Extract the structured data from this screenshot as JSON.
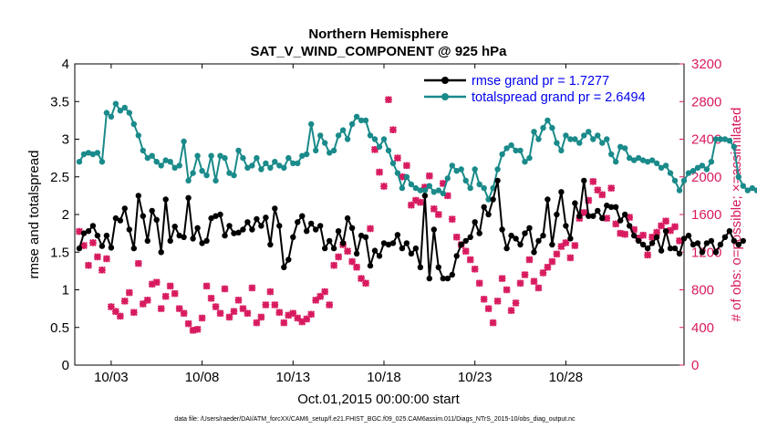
{
  "chart_data": {
    "type": "line",
    "title": "Northern Hemisphere",
    "subtitle": "SAT_V_WIND_COMPONENT @ 925 hPa",
    "xlabel": "Oct.01,2015 00:00:00 start",
    "ylabel_left": "rmse and totalspread",
    "ylabel_right": "# of obs: o=possible; ×=assimilated",
    "footnote": "data file: /Users/raeder/DAI/ATM_forcXX/CAM6_setup/f.e21.FHIST_BGC.f09_025.CAM6assim.011/Diags_NTrS_2015-10/obs_diag_output.nc",
    "xlim": [
      1,
      34.5
    ],
    "ylim_left": [
      0,
      4
    ],
    "ylim_right": [
      0,
      3200
    ],
    "x_ticks": [
      3,
      8,
      13,
      18,
      23,
      28
    ],
    "x_tick_labels": [
      "10/03",
      "10/08",
      "10/13",
      "10/18",
      "10/23",
      "10/28"
    ],
    "y_ticks_left": [
      0,
      0.5,
      1,
      1.5,
      2,
      2.5,
      3,
      3.5,
      4
    ],
    "y_tick_labels_left": [
      "0",
      "0.5",
      "1",
      "1.5",
      "2",
      "2.5",
      "3",
      "3.5",
      "4"
    ],
    "y_ticks_right": [
      0,
      400,
      800,
      1200,
      1600,
      2000,
      2400,
      2800,
      3200
    ],
    "y_tick_labels_right": [
      "0",
      "400",
      "800",
      "1200",
      "1600",
      "2000",
      "2400",
      "2800",
      "3200"
    ],
    "x_start": 1.25,
    "x_step": 0.25,
    "series": [
      {
        "name": "rmse",
        "legend_label": "rmse grand pr = 1.7277",
        "color": "#000000",
        "axis": "left",
        "values": [
          1.55,
          1.75,
          1.78,
          1.85,
          1.72,
          1.58,
          1.72,
          1.56,
          1.95,
          1.92,
          2.08,
          1.8,
          1.55,
          2.25,
          1.98,
          1.65,
          2.05,
          1.93,
          1.5,
          2.2,
          1.65,
          1.84,
          1.72,
          1.7,
          2.22,
          1.68,
          1.82,
          1.62,
          1.65,
          1.95,
          1.98,
          2.0,
          1.72,
          1.85,
          1.75,
          1.76,
          1.8,
          1.9,
          1.8,
          1.94,
          1.85,
          1.96,
          1.6,
          2.08,
          1.85,
          1.3,
          1.4,
          1.7,
          1.9,
          1.98,
          1.78,
          1.88,
          1.8,
          1.85,
          1.55,
          1.65,
          1.55,
          1.78,
          1.62,
          1.95,
          1.82,
          1.48,
          1.72,
          1.7,
          1.32,
          1.52,
          1.45,
          1.62,
          1.6,
          1.62,
          1.73,
          1.55,
          1.62,
          1.48,
          1.55,
          1.3,
          2.25,
          1.15,
          1.8,
          1.3,
          1.15,
          1.15,
          1.2,
          1.45,
          1.6,
          1.65,
          1.7,
          1.9,
          1.75,
          2.1,
          2.0,
          2.2,
          2.45,
          1.8,
          1.55,
          1.72,
          1.68,
          1.6,
          1.75,
          1.82,
          1.5,
          1.65,
          1.72,
          2.2,
          1.6,
          2.0,
          2.3,
          1.85,
          1.68,
          2.15,
          1.98,
          2.45,
          1.98,
          1.98,
          2.05,
          1.95,
          2.12,
          2.1,
          2.1,
          1.92,
          2.0,
          1.85,
          1.72,
          1.65,
          1.6,
          1.55,
          1.62,
          1.7,
          1.52,
          1.78,
          1.55,
          1.55,
          1.48,
          1.68,
          1.72,
          1.6,
          1.62,
          1.5,
          1.62,
          1.65,
          1.5,
          1.6,
          1.7,
          1.78,
          1.65,
          1.6,
          1.65
        ]
      },
      {
        "name": "totalspread",
        "legend_label": "totalspread grand pr = 2.6494",
        "color": "#1a8a8a",
        "axis": "left",
        "values": [
          2.7,
          2.8,
          2.82,
          2.8,
          2.82,
          2.7,
          3.35,
          3.3,
          3.47,
          3.38,
          3.42,
          3.35,
          3.2,
          3.05,
          2.85,
          2.75,
          2.78,
          2.7,
          2.65,
          2.72,
          2.7,
          2.62,
          2.65,
          2.97,
          2.45,
          2.55,
          2.78,
          2.58,
          2.52,
          2.78,
          2.45,
          2.78,
          2.75,
          2.55,
          2.52,
          2.85,
          2.75,
          2.62,
          2.65,
          2.75,
          2.6,
          2.68,
          2.62,
          2.7,
          2.65,
          2.62,
          2.75,
          2.68,
          2.68,
          2.78,
          2.8,
          3.2,
          2.85,
          3.05,
          2.95,
          2.82,
          2.85,
          3.05,
          3.12,
          3.0,
          3.2,
          3.3,
          3.25,
          3.25,
          3.05,
          3.0,
          2.9,
          3.0,
          2.85,
          2.68,
          2.55,
          2.35,
          2.5,
          2.4,
          2.35,
          2.32,
          2.32,
          2.38,
          2.3,
          2.32,
          2.28,
          2.48,
          2.65,
          2.58,
          2.6,
          2.45,
          2.35,
          2.6,
          2.4,
          2.35,
          2.2,
          2.35,
          2.6,
          2.8,
          2.88,
          2.92,
          2.85,
          2.85,
          2.7,
          2.75,
          3.1,
          3.0,
          3.15,
          3.25,
          3.15,
          2.95,
          2.85,
          3.05,
          3.0,
          3.0,
          2.95,
          3.05,
          3.1,
          3.0,
          3.05,
          2.95,
          3.0,
          2.8,
          2.7,
          2.9,
          2.88,
          2.75,
          2.72,
          2.75,
          2.72,
          2.7,
          2.72,
          2.68,
          2.62,
          2.65,
          2.55,
          2.45,
          2.32,
          2.45,
          2.55,
          2.58,
          2.62,
          2.65,
          2.6,
          2.7,
          3.0,
          3.0,
          3.0,
          2.98,
          2.9,
          2.5,
          2.38,
          2.32,
          2.35,
          2.32
        ]
      }
    ],
    "obs_scatter": {
      "name": "assimilated",
      "color": "#d81b60",
      "marker": "×",
      "axis": "right",
      "points": [
        [
          1.25,
          1420
        ],
        [
          1.5,
          1270
        ],
        [
          1.75,
          1060
        ],
        [
          2,
          1300
        ],
        [
          2.25,
          1150
        ],
        [
          2.5,
          1010
        ],
        [
          2.75,
          1130
        ],
        [
          3,
          620
        ],
        [
          3.25,
          570
        ],
        [
          3.5,
          520
        ],
        [
          3.75,
          680
        ],
        [
          4,
          770
        ],
        [
          4.25,
          560
        ],
        [
          4.5,
          1080
        ],
        [
          4.75,
          650
        ],
        [
          5,
          690
        ],
        [
          5.25,
          860
        ],
        [
          5.5,
          880
        ],
        [
          5.75,
          600
        ],
        [
          6,
          730
        ],
        [
          6.25,
          840
        ],
        [
          6.5,
          760
        ],
        [
          6.75,
          600
        ],
        [
          7,
          550
        ],
        [
          7.25,
          440
        ],
        [
          7.5,
          370
        ],
        [
          7.75,
          380
        ],
        [
          8,
          500
        ],
        [
          8.25,
          840
        ],
        [
          8.5,
          710
        ],
        [
          8.75,
          620
        ],
        [
          9,
          550
        ],
        [
          9.25,
          810
        ],
        [
          9.5,
          510
        ],
        [
          9.75,
          570
        ],
        [
          10,
          690
        ],
        [
          10.25,
          600
        ],
        [
          10.5,
          550
        ],
        [
          10.75,
          820
        ],
        [
          11,
          450
        ],
        [
          11.25,
          510
        ],
        [
          11.5,
          640
        ],
        [
          11.75,
          780
        ],
        [
          12,
          640
        ],
        [
          12.25,
          560
        ],
        [
          12.5,
          450
        ],
        [
          12.75,
          530
        ],
        [
          13,
          550
        ],
        [
          13.25,
          500
        ],
        [
          13.5,
          460
        ],
        [
          13.75,
          490
        ],
        [
          14,
          540
        ],
        [
          14.25,
          690
        ],
        [
          14.5,
          730
        ],
        [
          14.75,
          780
        ],
        [
          15,
          640
        ],
        [
          15.25,
          1060
        ],
        [
          15.5,
          1150
        ],
        [
          15.75,
          1280
        ],
        [
          16,
          1210
        ],
        [
          16.25,
          1100
        ],
        [
          16.5,
          1040
        ],
        [
          16.75,
          920
        ],
        [
          17,
          870
        ],
        [
          17.25,
          1450
        ],
        [
          17.5,
          2290
        ],
        [
          17.75,
          2050
        ],
        [
          18,
          1900
        ],
        [
          18.25,
          2820
        ],
        [
          18.5,
          2500
        ],
        [
          18.75,
          2200
        ],
        [
          19,
          2000
        ],
        [
          19.25,
          2120
        ],
        [
          19.5,
          1700
        ],
        [
          19.75,
          1750
        ],
        [
          20,
          1730
        ],
        [
          20.25,
          1890
        ],
        [
          20.5,
          2010
        ],
        [
          20.75,
          1660
        ],
        [
          21,
          1600
        ],
        [
          21.25,
          1930
        ],
        [
          21.5,
          1800
        ],
        [
          21.75,
          1550
        ],
        [
          22,
          1360
        ],
        [
          22.25,
          1280
        ],
        [
          22.5,
          1210
        ],
        [
          22.75,
          1120
        ],
        [
          23,
          1020
        ],
        [
          23.25,
          870
        ],
        [
          23.5,
          700
        ],
        [
          23.75,
          600
        ],
        [
          24,
          450
        ],
        [
          24.25,
          680
        ],
        [
          24.5,
          920
        ],
        [
          24.75,
          800
        ],
        [
          25,
          580
        ],
        [
          25.25,
          660
        ],
        [
          25.5,
          870
        ],
        [
          25.75,
          960
        ],
        [
          26,
          1120
        ],
        [
          26.25,
          890
        ],
        [
          26.5,
          820
        ],
        [
          26.75,
          980
        ],
        [
          27,
          1040
        ],
        [
          27.25,
          1100
        ],
        [
          27.5,
          1180
        ],
        [
          27.75,
          1260
        ],
        [
          28,
          1300
        ],
        [
          28.25,
          1140
        ],
        [
          28.5,
          1270
        ],
        [
          28.75,
          1560
        ],
        [
          29,
          1620
        ],
        [
          29.25,
          1750
        ],
        [
          29.5,
          1950
        ],
        [
          29.75,
          1860
        ],
        [
          30,
          1810
        ],
        [
          30.25,
          1560
        ],
        [
          30.5,
          1880
        ],
        [
          30.75,
          1500
        ],
        [
          31,
          1400
        ],
        [
          31.25,
          1390
        ],
        [
          31.5,
          1570
        ],
        [
          31.75,
          1440
        ],
        [
          32,
          1350
        ],
        [
          32.25,
          1380
        ],
        [
          32.5,
          1170
        ],
        [
          32.75,
          1360
        ],
        [
          33,
          1410
        ],
        [
          33.25,
          1480
        ],
        [
          33.5,
          1530
        ],
        [
          33.75,
          1430
        ],
        [
          34,
          1470
        ],
        [
          34.25,
          1320
        ]
      ]
    }
  }
}
